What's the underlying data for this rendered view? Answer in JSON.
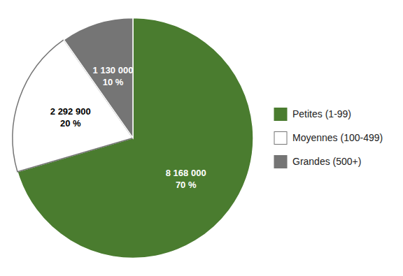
{
  "chart_data": {
    "type": "pie",
    "categories": [
      "Petites (1-99)",
      "Moyennes (100-499)",
      "Grandes (500+)"
    ],
    "values": [
      8168000,
      2292900,
      1130000
    ],
    "value_labels": [
      "8 168 000",
      "2 292 900",
      "1 130 000"
    ],
    "percentages": [
      70,
      20,
      10
    ],
    "percentage_labels": [
      "70 %",
      "20 %",
      "10 %"
    ],
    "colors": [
      "#4a7c2f",
      "#ffffff",
      "#757575"
    ],
    "data_labels": true,
    "legend": "right"
  }
}
